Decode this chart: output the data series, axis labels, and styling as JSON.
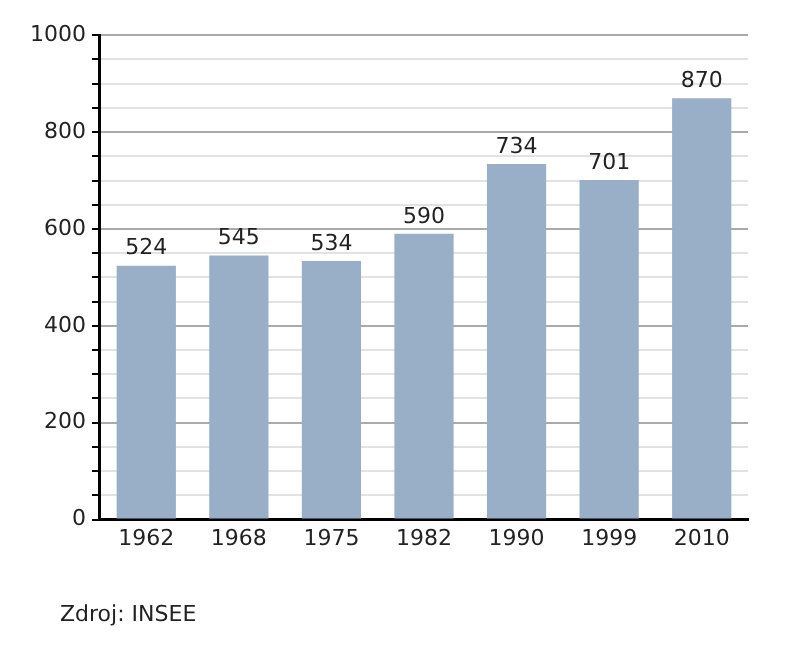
{
  "chart_data": {
    "type": "bar",
    "categories": [
      "1962",
      "1968",
      "1975",
      "1982",
      "1990",
      "1999",
      "2010"
    ],
    "values": [
      524,
      545,
      534,
      590,
      734,
      701,
      870
    ],
    "color": "#98afc7",
    "ylim": [
      0,
      1000
    ],
    "yticks": [
      0,
      {
        "value": 50,
        "label": null
      },
      {
        "value": 100,
        "label": null
      },
      {
        "value": 150,
        "label": null
      },
      200,
      {
        "value": 250,
        "label": null
      },
      {
        "value": 300,
        "label": null
      },
      {
        "value": 350,
        "label": null
      },
      400,
      {
        "value": 450,
        "label": null
      },
      {
        "value": 500,
        "label": null
      },
      {
        "value": 550,
        "label": null
      },
      600,
      {
        "value": 650,
        "label": null
      },
      {
        "value": 700,
        "label": null
      },
      {
        "value": 750,
        "label": null
      },
      800,
      {
        "value": 850,
        "label": null
      },
      {
        "value": 900,
        "label": null
      },
      {
        "value": 950,
        "label": null
      },
      1000
    ],
    "grid": "y",
    "data_labels": true,
    "annotations": [
      "Zdroj: INSEE"
    ]
  }
}
